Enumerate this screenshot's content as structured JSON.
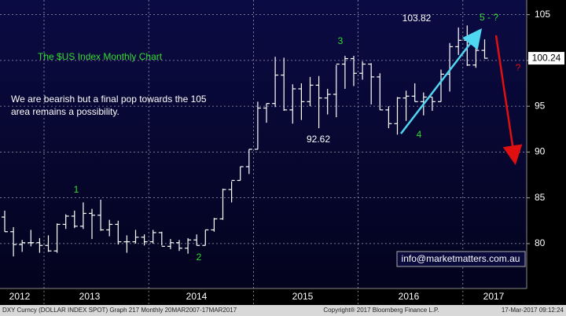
{
  "chart_data": {
    "type": "ohlc",
    "title": "The $US Index Monthly Chart",
    "categories": [
      null,
      null,
      null,
      null,
      null,
      null,
      null,
      null,
      null,
      null,
      null,
      null,
      null,
      null,
      null,
      null,
      null,
      null,
      null,
      null,
      null,
      null,
      null,
      null,
      null,
      null,
      null,
      null,
      null,
      null,
      null,
      null,
      null,
      null,
      null,
      null,
      null,
      null,
      null,
      null,
      null,
      null,
      null,
      null,
      null,
      null,
      null,
      null,
      null,
      null,
      null,
      null,
      null,
      null,
      null,
      null
    ],
    "open": [
      82.9,
      81.3,
      79.9,
      80.1,
      80.1,
      79.8,
      79.2,
      82.1,
      83.0,
      81.9,
      83.3,
      83.1,
      81.5,
      82.1,
      80.2,
      80.2,
      80.7,
      80.2,
      81.2,
      79.7,
      80.1,
      79.5,
      80.4,
      79.8,
      81.5,
      82.7,
      85.9,
      86.9,
      88.4,
      90.3,
      94.8,
      95.3,
      98.4,
      94.6,
      96.9,
      95.5,
      97.3,
      95.9,
      96.3,
      99.6,
      100.2,
      98.6,
      99.6,
      98.2,
      94.6,
      93.1,
      95.9,
      96.1,
      95.5,
      96.0,
      95.5,
      98.5,
      101.5,
      102.2,
      99.5,
      101.1
    ],
    "high": [
      83.6,
      81.8,
      80.4,
      81.5,
      80.6,
      80.9,
      82.2,
      83.2,
      83.6,
      84.5,
      83.8,
      84.8,
      82.6,
      82.5,
      80.9,
      81.5,
      81.0,
      81.5,
      81.3,
      80.5,
      80.4,
      80.6,
      81.0,
      81.5,
      82.8,
      86.0,
      86.8,
      88.4,
      90.3,
      95.5,
      95.3,
      100.4,
      100.3,
      97.4,
      97.5,
      98.2,
      98.3,
      96.9,
      99.5,
      100.5,
      100.5,
      99.9,
      99.7,
      98.6,
      95.0,
      96.0,
      96.7,
      97.5,
      96.5,
      96.0,
      99.0,
      101.9,
      103.6,
      103.82,
      101.8,
      102.3
    ],
    "low": [
      81.3,
      78.6,
      79.1,
      79.7,
      79.0,
      79.1,
      79.0,
      81.6,
      81.7,
      81.6,
      80.5,
      81.4,
      80.8,
      79.9,
      79.0,
      80.0,
      79.8,
      80.0,
      79.8,
      79.4,
      79.2,
      78.9,
      79.8,
      79.8,
      81.3,
      82.6,
      84.5,
      86.9,
      87.6,
      90.3,
      93.2,
      94.9,
      94.5,
      93.1,
      93.5,
      95.0,
      92.6,
      94.1,
      93.8,
      96.9,
      97.2,
      97.9,
      95.2,
      94.6,
      92.6,
      91.9,
      93.4,
      95.5,
      94.0,
      94.5,
      95.5,
      96.6,
      100.6,
      99.4,
      99.2,
      100.2
    ],
    "close": [
      81.3,
      79.9,
      80.1,
      80.1,
      79.8,
      79.2,
      82.1,
      83.0,
      81.9,
      83.3,
      83.1,
      81.5,
      82.1,
      80.2,
      80.2,
      80.7,
      80.2,
      81.2,
      79.7,
      80.1,
      79.5,
      80.4,
      79.8,
      81.5,
      82.7,
      85.9,
      86.9,
      88.4,
      90.3,
      94.8,
      95.3,
      98.4,
      94.6,
      96.9,
      95.5,
      97.3,
      95.9,
      96.3,
      99.6,
      100.2,
      98.6,
      99.6,
      98.2,
      94.6,
      93.1,
      95.9,
      96.1,
      95.5,
      96.0,
      95.5,
      98.5,
      101.5,
      102.2,
      99.5,
      101.1,
      100.24
    ],
    "color": "#ffffff",
    "ylim": [
      75.1,
      106.6
    ],
    "yticks": [
      80,
      85,
      90,
      95,
      100,
      105
    ],
    "grid": true,
    "x_period_labels": [
      "2012",
      "2013",
      "2014",
      "2015",
      "2016",
      "2017"
    ],
    "annotations": {
      "high_label": "103.82",
      "wave5": "5 - ?",
      "wave1": "1",
      "wave2": "2",
      "wave3": "3",
      "wave4": "4",
      "low_label": "92.62",
      "question": "?",
      "comment": "We are bearish but a final pop towards the 105 area remains a possibility.",
      "contact": "info@marketmatters.com.au"
    },
    "footer_left": "DXY Curncy (DOLLAR INDEX SPOT) Graph 217  Monthly 20MAR2007-17MAR2017",
    "footer_mid": "Copyright® 2017 Bloomberg Finance L.P.",
    "footer_right": "17-Mar-2017 09:12:24"
  }
}
